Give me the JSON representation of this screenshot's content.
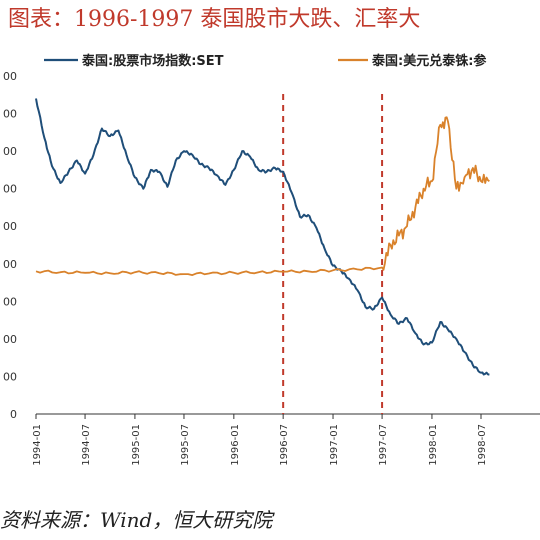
{
  "title": "图表：1996-1997 泰国股市大跌、汇率大",
  "source": "资料来源：Wind，恒大研究院",
  "colors": {
    "set": "#1f4e79",
    "fx": "#d9822b",
    "marker": "#c0392b",
    "title": "#c0392b"
  },
  "chart_data": {
    "type": "line",
    "title": "",
    "xlabel": "",
    "ylabel": "",
    "ylim": [
      0,
      1800
    ],
    "x_ticks": [
      "1994-01",
      "1994-07",
      "1995-01",
      "1995-07",
      "1996-01",
      "1996-07",
      "1997-01",
      "1997-07",
      "1998-01",
      "1998-07"
    ],
    "y_tick_labels": [
      "0",
      "00",
      "00",
      "00",
      "00",
      "00",
      "00",
      "00",
      "00",
      "00"
    ],
    "legend_position": "top",
    "grid": false,
    "vertical_markers": [
      "1996-07",
      "1997-07"
    ],
    "series": [
      {
        "name": "泰国:股票市场指数:SET",
        "x": [
          "1994-01",
          "1994-02",
          "1994-03",
          "1994-04",
          "1994-05",
          "1994-06",
          "1994-07",
          "1994-08",
          "1994-09",
          "1994-10",
          "1994-11",
          "1994-12",
          "1995-01",
          "1995-02",
          "1995-03",
          "1995-04",
          "1995-05",
          "1995-06",
          "1995-07",
          "1995-08",
          "1995-09",
          "1995-10",
          "1995-11",
          "1995-12",
          "1996-01",
          "1996-02",
          "1996-03",
          "1996-04",
          "1996-05",
          "1996-06",
          "1996-07",
          "1996-08",
          "1996-09",
          "1996-10",
          "1996-11",
          "1996-12",
          "1997-01",
          "1997-02",
          "1997-03",
          "1997-04",
          "1997-05",
          "1997-06",
          "1997-07",
          "1997-08",
          "1997-09",
          "1997-10",
          "1997-11",
          "1997-12",
          "1998-01",
          "1998-02",
          "1998-03",
          "1998-04",
          "1998-05",
          "1998-06",
          "1998-07",
          "1998-08"
        ],
        "values": [
          1680,
          1470,
          1320,
          1230,
          1290,
          1350,
          1280,
          1380,
          1520,
          1480,
          1510,
          1380,
          1260,
          1200,
          1300,
          1290,
          1210,
          1350,
          1400,
          1380,
          1330,
          1310,
          1270,
          1220,
          1300,
          1400,
          1370,
          1300,
          1290,
          1310,
          1290,
          1180,
          1050,
          1060,
          990,
          880,
          790,
          760,
          720,
          660,
          570,
          560,
          620,
          530,
          480,
          510,
          430,
          370,
          380,
          490,
          450,
          400,
          330,
          260,
          220,
          210
        ]
      },
      {
        "name": "泰国:美元兑泰铢:参",
        "x": [
          "1994-01",
          "1994-04",
          "1994-07",
          "1994-10",
          "1995-01",
          "1995-04",
          "1995-07",
          "1995-10",
          "1996-01",
          "1996-04",
          "1996-07",
          "1996-10",
          "1997-01",
          "1997-04",
          "1997-07",
          "1997-08",
          "1997-09",
          "1997-10",
          "1997-11",
          "1997-12",
          "1998-01",
          "1998-02",
          "1998-03",
          "1998-04",
          "1998-05",
          "1998-06",
          "1998-07",
          "1998-08"
        ],
        "values": [
          760,
          755,
          752,
          750,
          755,
          750,
          745,
          748,
          752,
          755,
          758,
          760,
          765,
          770,
          780,
          900,
          950,
          1000,
          1100,
          1200,
          1240,
          1540,
          1560,
          1200,
          1260,
          1310,
          1240,
          1240
        ]
      }
    ]
  }
}
